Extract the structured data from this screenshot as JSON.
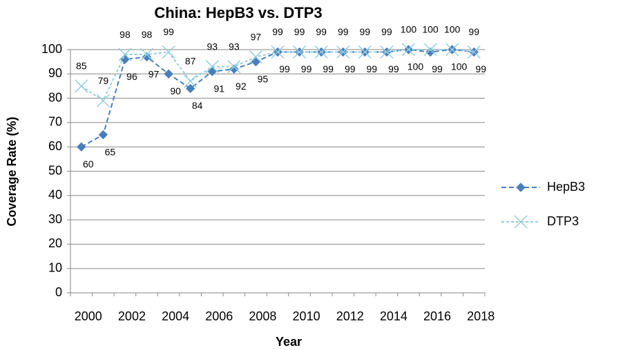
{
  "chart_data": {
    "type": "line",
    "title": "China: HepB3 vs. DTP3",
    "xlabel": "Year",
    "ylabel": "Coverage Rate (%)",
    "categories": [
      "2000",
      null,
      "2002",
      null,
      "2004",
      null,
      "2006",
      null,
      "2008",
      null,
      "2010",
      null,
      "2012",
      null,
      "2014",
      null,
      "2016",
      null,
      "2018"
    ],
    "series": [
      {
        "name": "HepB3",
        "color": "#4a7ebb",
        "marker": "diamond",
        "label_side": "below",
        "values": [
          60,
          65,
          96,
          97,
          90,
          84,
          91,
          92,
          95,
          99,
          99,
          99,
          99,
          99,
          99,
          100,
          99,
          100,
          99
        ]
      },
      {
        "name": "DTP3",
        "color": "#93cddd",
        "marker": "x",
        "label_side": "above",
        "values": [
          85,
          79,
          98,
          98,
          99,
          87,
          93,
          93,
          97,
          99,
          99,
          99,
          99,
          99,
          99,
          100,
          100,
          100,
          99
        ]
      }
    ],
    "ylim": [
      0,
      100
    ],
    "yticks": [
      0,
      10,
      20,
      30,
      40,
      50,
      60,
      70,
      80,
      90,
      100
    ],
    "grid": true,
    "legend": "right"
  }
}
